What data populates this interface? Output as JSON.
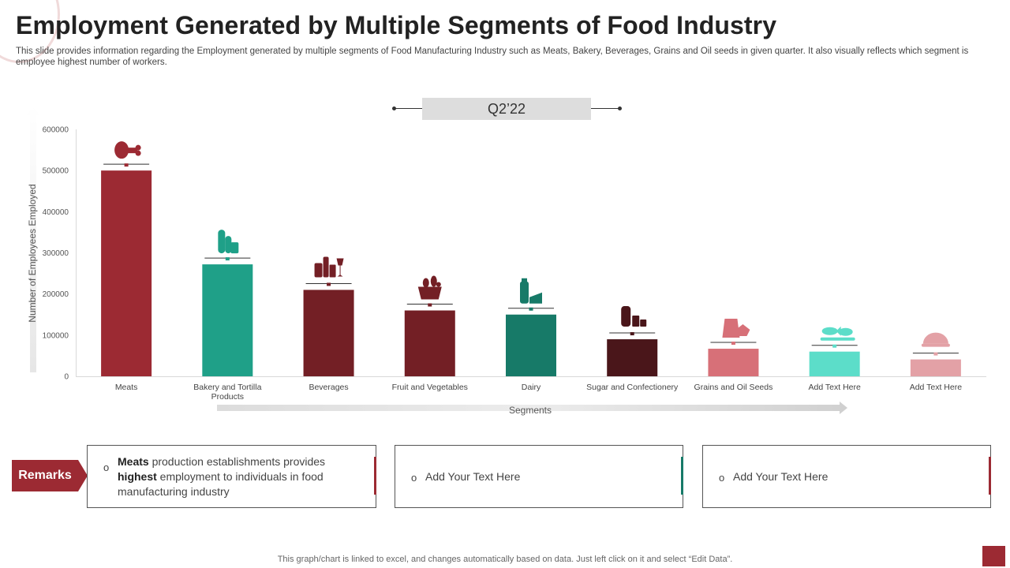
{
  "title": "Employment Generated by Multiple Segments of Food Industry",
  "subtitle": "This slide provides information regarding the Employment generated by multiple segments of Food Manufacturing Industry such as Meats, Bakery, Beverages, Grains and Oil seeds in given quarter. It also visually reflects which segment is employee highest number of workers.",
  "quarter_label": "Q2’22",
  "chart_data": {
    "type": "bar",
    "categories": [
      "Meats",
      "Bakery and Tortilla Products",
      "Beverages",
      "Fruit and Vegetables",
      "Dairy",
      "Sugar and Confectionery",
      "Grains and Oil Seeds",
      "Add Text Here",
      "Add Text Here"
    ],
    "values": [
      500000,
      272000,
      210000,
      160000,
      150000,
      90000,
      67000,
      60000,
      41000
    ],
    "colors": [
      "#9c2a33",
      "#1fa088",
      "#731f25",
      "#731f25",
      "#177a68",
      "#4a161a",
      "#d77078",
      "#5cddc9",
      "#e3a1a6"
    ],
    "icons": [
      "meat-icon",
      "bakery-icon",
      "beverages-icon",
      "fruit-basket-icon",
      "dairy-icon",
      "sugar-icon",
      "grains-icon",
      "seafood-icon",
      "bowl-icon"
    ],
    "title": "",
    "xlabel": "Segments",
    "ylabel": "Number of Employees Employed",
    "ylim": [
      0,
      600000
    ],
    "yticks": [
      0,
      100000,
      200000,
      300000,
      400000,
      500000,
      600000
    ],
    "grid": false,
    "legend": "none"
  },
  "remarks": {
    "label": "Remarks",
    "color": "#9c2a33",
    "cards": [
      {
        "bullet": "o",
        "bold1": "Meats",
        "text1": " production establishments provides ",
        "bold2": "highest",
        "text2": " employment to individuals in food manufacturing industry",
        "accent": "#9c2a33"
      },
      {
        "bullet": "o",
        "text": "Add Your Text Here",
        "accent": "#177a68"
      },
      {
        "bullet": "o",
        "text": "Add Your Text Here",
        "accent": "#9c2a33"
      }
    ]
  },
  "footer": "This graph/chart is linked to excel, and changes automatically based on data. Just left click on it and select “Edit Data”."
}
